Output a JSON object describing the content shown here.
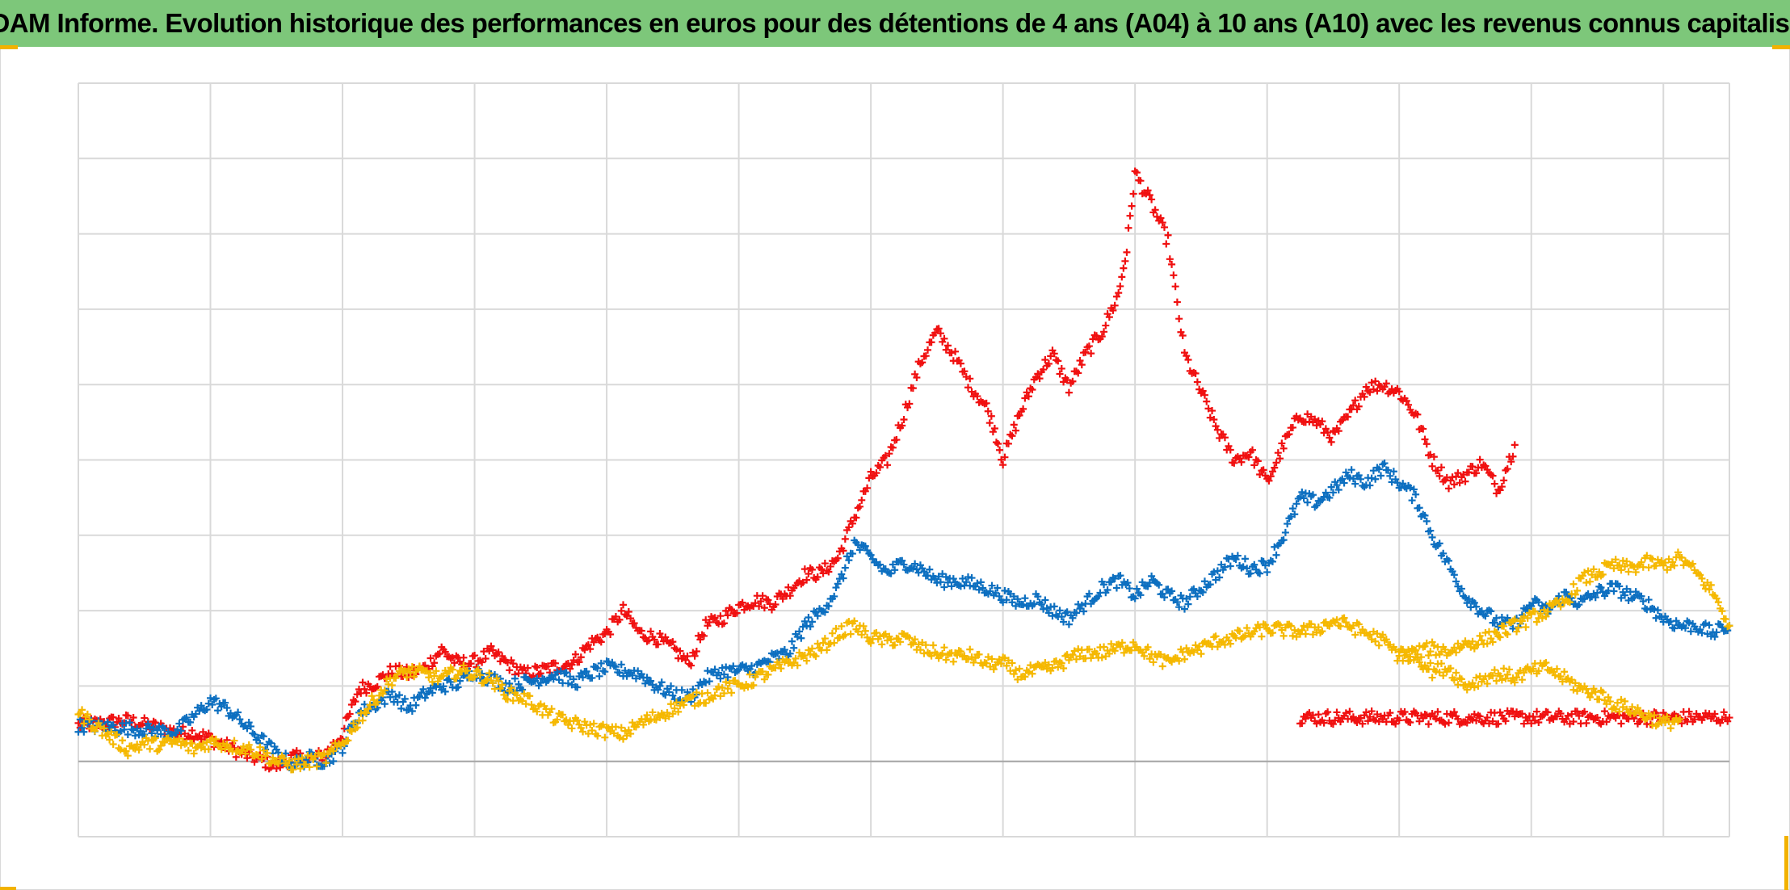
{
  "chart_data": {
    "type": "scatter",
    "title": "ADAM Informe. Evolution historique des performances en euros pour des détentions de 4 ans (A04) à 10 ans (A10) avec les revenus connus capitalisés",
    "xlabel": "",
    "ylabel": "",
    "x_range": [
      0,
      100
    ],
    "y_range": [
      -0.5,
      4.5
    ],
    "grid": true,
    "legend": "none",
    "marker": "plus",
    "colors": {
      "title_bg": "#7dc77a",
      "frame_accent": "#f2b200",
      "grid": "#d9d9d9",
      "baseline": "#a6a6a6"
    },
    "series": [
      {
        "color": "#f01010",
        "points": [
          [
            0,
            0.24
          ],
          [
            3,
            0.27
          ],
          [
            5,
            0.22
          ],
          [
            6,
            0.19
          ],
          [
            7,
            0.19
          ],
          [
            8,
            0.15
          ],
          [
            10,
            0.05
          ],
          [
            12,
            -0.03
          ],
          [
            13,
            0.03
          ],
          [
            14,
            0.01
          ],
          [
            15,
            0.05
          ],
          [
            16,
            0.18
          ],
          [
            17,
            0.48
          ],
          [
            18,
            0.52
          ],
          [
            19,
            0.6
          ],
          [
            20,
            0.58
          ],
          [
            21,
            0.62
          ],
          [
            22,
            0.74
          ],
          [
            23,
            0.65
          ],
          [
            24,
            0.66
          ],
          [
            25,
            0.72
          ],
          [
            26,
            0.65
          ],
          [
            27,
            0.58
          ],
          [
            28,
            0.6
          ],
          [
            29,
            0.63
          ],
          [
            30,
            0.66
          ],
          [
            31,
            0.78
          ],
          [
            32,
            0.85
          ],
          [
            33,
            1.0
          ],
          [
            34,
            0.85
          ],
          [
            35,
            0.82
          ],
          [
            36,
            0.75
          ],
          [
            37,
            0.65
          ],
          [
            38,
            0.9
          ],
          [
            39,
            0.95
          ],
          [
            40,
            1.03
          ],
          [
            41,
            1.07
          ],
          [
            42,
            1.05
          ],
          [
            43,
            1.13
          ],
          [
            44,
            1.24
          ],
          [
            45,
            1.25
          ],
          [
            46,
            1.35
          ],
          [
            47,
            1.62
          ],
          [
            48,
            1.88
          ],
          [
            49,
            2.0
          ],
          [
            50,
            2.3
          ],
          [
            51,
            2.65
          ],
          [
            52,
            2.85
          ],
          [
            53,
            2.7
          ],
          [
            54,
            2.5
          ],
          [
            55,
            2.35
          ],
          [
            55.5,
            2.2
          ],
          [
            56,
            2.0
          ],
          [
            57,
            2.3
          ],
          [
            58,
            2.55
          ],
          [
            59,
            2.7
          ],
          [
            60,
            2.48
          ],
          [
            61,
            2.7
          ],
          [
            62,
            2.85
          ],
          [
            63,
            3.1
          ],
          [
            63.5,
            3.4
          ],
          [
            64,
            3.9
          ],
          [
            65,
            3.7
          ],
          [
            66,
            3.45
          ],
          [
            67,
            2.7
          ],
          [
            68,
            2.45
          ],
          [
            69,
            2.2
          ],
          [
            70,
            2.0
          ],
          [
            71,
            2.05
          ],
          [
            72,
            1.85
          ],
          [
            73,
            2.1
          ],
          [
            74,
            2.3
          ],
          [
            75,
            2.25
          ],
          [
            76,
            2.15
          ],
          [
            77,
            2.3
          ],
          [
            78,
            2.48
          ],
          [
            79,
            2.5
          ],
          [
            80,
            2.45
          ],
          [
            81,
            2.3
          ],
          [
            82,
            2.0
          ],
          [
            83,
            1.85
          ],
          [
            84,
            1.9
          ],
          [
            85,
            1.98
          ],
          [
            86,
            1.8
          ],
          [
            87,
            2.1
          ]
        ]
      },
      {
        "color": "#f01010",
        "points": [
          [
            74,
            0.29
          ],
          [
            76,
            0.29
          ],
          [
            78,
            0.29
          ],
          [
            80,
            0.29
          ],
          [
            82,
            0.29
          ],
          [
            84,
            0.29
          ],
          [
            86,
            0.29
          ],
          [
            88,
            0.29
          ],
          [
            90,
            0.29
          ],
          [
            92,
            0.29
          ],
          [
            94,
            0.29
          ],
          [
            96,
            0.29
          ],
          [
            98,
            0.29
          ],
          [
            100,
            0.29
          ]
        ]
      },
      {
        "color": "#0c6fc0",
        "points": [
          [
            0,
            0.24
          ],
          [
            3,
            0.22
          ],
          [
            5,
            0.2
          ],
          [
            6,
            0.2
          ],
          [
            7,
            0.3
          ],
          [
            8,
            0.4
          ],
          [
            9,
            0.35
          ],
          [
            10,
            0.25
          ],
          [
            11,
            0.15
          ],
          [
            12,
            0.05
          ],
          [
            13,
            -0.02
          ],
          [
            14,
            0.02
          ],
          [
            15,
            0.0
          ],
          [
            16,
            0.1
          ],
          [
            17,
            0.32
          ],
          [
            18,
            0.38
          ],
          [
            19,
            0.45
          ],
          [
            20,
            0.35
          ],
          [
            21,
            0.45
          ],
          [
            22,
            0.5
          ],
          [
            23,
            0.52
          ],
          [
            24,
            0.6
          ],
          [
            25,
            0.55
          ],
          [
            26,
            0.5
          ],
          [
            27,
            0.52
          ],
          [
            28,
            0.55
          ],
          [
            29,
            0.58
          ],
          [
            30,
            0.52
          ],
          [
            31,
            0.58
          ],
          [
            32,
            0.62
          ],
          [
            33,
            0.6
          ],
          [
            34,
            0.58
          ],
          [
            35,
            0.5
          ],
          [
            36,
            0.45
          ],
          [
            37,
            0.42
          ],
          [
            38,
            0.55
          ],
          [
            39,
            0.6
          ],
          [
            40,
            0.6
          ],
          [
            41,
            0.62
          ],
          [
            42,
            0.68
          ],
          [
            43,
            0.72
          ],
          [
            44,
            0.9
          ],
          [
            45,
            1.0
          ],
          [
            46,
            1.15
          ],
          [
            47,
            1.45
          ],
          [
            48,
            1.35
          ],
          [
            49,
            1.25
          ],
          [
            50,
            1.32
          ],
          [
            51,
            1.28
          ],
          [
            52,
            1.2
          ],
          [
            53,
            1.2
          ],
          [
            54,
            1.18
          ],
          [
            55,
            1.15
          ],
          [
            56,
            1.1
          ],
          [
            57,
            1.05
          ],
          [
            58,
            1.08
          ],
          [
            59,
            1.0
          ],
          [
            60,
            0.95
          ],
          [
            61,
            1.05
          ],
          [
            62,
            1.15
          ],
          [
            63,
            1.2
          ],
          [
            64,
            1.1
          ],
          [
            65,
            1.2
          ],
          [
            66,
            1.1
          ],
          [
            67,
            1.05
          ],
          [
            68,
            1.15
          ],
          [
            69,
            1.25
          ],
          [
            70,
            1.35
          ],
          [
            71,
            1.28
          ],
          [
            72,
            1.3
          ],
          [
            73,
            1.5
          ],
          [
            74,
            1.75
          ],
          [
            75,
            1.72
          ],
          [
            76,
            1.8
          ],
          [
            77,
            1.9
          ],
          [
            78,
            1.85
          ],
          [
            79,
            1.95
          ],
          [
            80,
            1.85
          ],
          [
            81,
            1.75
          ],
          [
            82,
            1.5
          ],
          [
            83,
            1.3
          ],
          [
            84,
            1.1
          ],
          [
            85,
            1.0
          ],
          [
            86,
            0.92
          ],
          [
            87,
            0.9
          ],
          [
            88,
            1.05
          ],
          [
            89,
            1.0
          ],
          [
            90,
            1.1
          ],
          [
            91,
            1.05
          ],
          [
            92,
            1.12
          ],
          [
            93,
            1.15
          ],
          [
            94,
            1.1
          ],
          [
            95,
            1.05
          ],
          [
            96,
            0.95
          ],
          [
            97,
            0.9
          ],
          [
            98,
            0.9
          ],
          [
            99,
            0.85
          ],
          [
            100,
            0.9
          ]
        ]
      },
      {
        "color": "#f5b800",
        "points": [
          [
            0,
            0.32
          ],
          [
            2,
            0.16
          ],
          [
            3,
            0.08
          ],
          [
            4,
            0.12
          ],
          [
            5,
            0.11
          ],
          [
            6,
            0.13
          ],
          [
            7,
            0.08
          ],
          [
            8,
            0.13
          ],
          [
            9,
            0.11
          ],
          [
            10,
            0.09
          ],
          [
            11,
            0.06
          ],
          [
            12,
            0.0
          ],
          [
            13,
            -0.02
          ],
          [
            14,
            0.0
          ],
          [
            15,
            0.02
          ],
          [
            16,
            0.12
          ],
          [
            17,
            0.28
          ],
          [
            18,
            0.42
          ],
          [
            19,
            0.55
          ],
          [
            20,
            0.6
          ],
          [
            21,
            0.58
          ],
          [
            22,
            0.55
          ],
          [
            23,
            0.6
          ],
          [
            24,
            0.58
          ],
          [
            25,
            0.54
          ],
          [
            26,
            0.45
          ],
          [
            27,
            0.42
          ],
          [
            28,
            0.35
          ],
          [
            29,
            0.28
          ],
          [
            30,
            0.25
          ],
          [
            31,
            0.22
          ],
          [
            32,
            0.2
          ],
          [
            33,
            0.18
          ],
          [
            34,
            0.25
          ],
          [
            35,
            0.3
          ],
          [
            36,
            0.35
          ],
          [
            37,
            0.4
          ],
          [
            38,
            0.43
          ],
          [
            39,
            0.48
          ],
          [
            40,
            0.5
          ],
          [
            41,
            0.55
          ],
          [
            42,
            0.6
          ],
          [
            43,
            0.65
          ],
          [
            44,
            0.7
          ],
          [
            45,
            0.75
          ],
          [
            46,
            0.85
          ],
          [
            47,
            0.9
          ],
          [
            48,
            0.82
          ],
          [
            49,
            0.8
          ],
          [
            50,
            0.82
          ],
          [
            51,
            0.75
          ],
          [
            52,
            0.72
          ],
          [
            53,
            0.7
          ],
          [
            54,
            0.7
          ],
          [
            55,
            0.65
          ],
          [
            56,
            0.65
          ],
          [
            57,
            0.58
          ],
          [
            58,
            0.6
          ],
          [
            59,
            0.62
          ],
          [
            60,
            0.68
          ],
          [
            61,
            0.72
          ],
          [
            62,
            0.72
          ],
          [
            63,
            0.75
          ],
          [
            64,
            0.78
          ],
          [
            65,
            0.7
          ],
          [
            66,
            0.65
          ],
          [
            67,
            0.72
          ],
          [
            68,
            0.75
          ],
          [
            69,
            0.8
          ],
          [
            70,
            0.82
          ],
          [
            71,
            0.85
          ],
          [
            72,
            0.88
          ],
          [
            73,
            0.87
          ],
          [
            74,
            0.86
          ],
          [
            75,
            0.88
          ],
          [
            76,
            0.93
          ],
          [
            77,
            0.9
          ],
          [
            78,
            0.85
          ],
          [
            79,
            0.8
          ],
          [
            80,
            0.7
          ],
          [
            81,
            0.72
          ],
          [
            82,
            0.75
          ],
          [
            83,
            0.73
          ],
          [
            84,
            0.78
          ],
          [
            85,
            0.8
          ],
          [
            86,
            0.85
          ],
          [
            87,
            0.9
          ],
          [
            88,
            0.95
          ],
          [
            89,
            1.0
          ],
          [
            90,
            1.05
          ],
          [
            91,
            1.2
          ],
          [
            92,
            1.25
          ],
          [
            93,
            1.3
          ],
          [
            94,
            1.28
          ],
          [
            95,
            1.32
          ],
          [
            96,
            1.3
          ],
          [
            97,
            1.35
          ],
          [
            98,
            1.25
          ],
          [
            99,
            1.12
          ],
          [
            100,
            0.9
          ]
        ]
      },
      {
        "color": "#f5b800",
        "points": [
          [
            80,
            0.72
          ],
          [
            81,
            0.7
          ],
          [
            82,
            0.6
          ],
          [
            83,
            0.62
          ],
          [
            84,
            0.5
          ],
          [
            85,
            0.55
          ],
          [
            86,
            0.58
          ],
          [
            87,
            0.56
          ],
          [
            88,
            0.6
          ],
          [
            89,
            0.62
          ],
          [
            90,
            0.55
          ],
          [
            91,
            0.48
          ],
          [
            92,
            0.45
          ],
          [
            93,
            0.38
          ],
          [
            94,
            0.35
          ],
          [
            95,
            0.3
          ],
          [
            96,
            0.25
          ],
          [
            97,
            0.28
          ]
        ]
      }
    ]
  }
}
